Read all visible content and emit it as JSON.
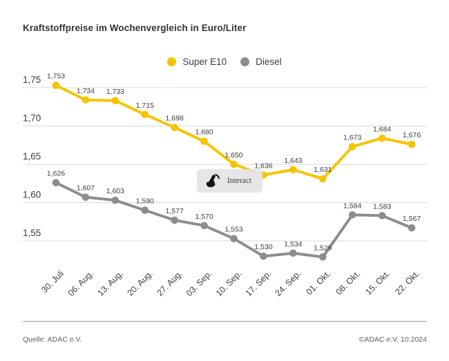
{
  "page": {
    "title": "Kraftstoffpreise im Wochenvergleich in Euro/Liter",
    "source_left": "Quelle: ADAC e.V.",
    "source_right": "©ADAC e.V. 10.2024"
  },
  "legend": {
    "items": [
      {
        "label": "Super E10",
        "color": "#F5C400"
      },
      {
        "label": "Diesel",
        "color": "#8D8D8D"
      }
    ]
  },
  "interact_overlay": {
    "label": "Interact",
    "icon": "tap-hand-icon"
  },
  "chart_data": {
    "type": "line",
    "title": "Kraftstoffpreise im Wochenvergleich in Euro/Liter",
    "ylabel": "Euro/Liter",
    "xlabel": "",
    "categories": [
      "30. Juli",
      "06. Aug.",
      "13. Aug.",
      "20. Aug.",
      "27. Aug.",
      "03. Sep.",
      "10. Sep.",
      "17. Sep.",
      "24. Sep.",
      "01. Okt.",
      "08. Okt.",
      "15. Okt.",
      "22. Okt."
    ],
    "series": [
      {
        "name": "Super E10",
        "color": "#F5C400",
        "values": [
          1.753,
          1.734,
          1.733,
          1.715,
          1.698,
          1.68,
          1.65,
          1.636,
          1.643,
          1.631,
          1.673,
          1.684,
          1.676
        ]
      },
      {
        "name": "Diesel",
        "color": "#8D8D8D",
        "values": [
          1.626,
          1.607,
          1.603,
          1.59,
          1.577,
          1.57,
          1.553,
          1.53,
          1.534,
          1.529,
          1.584,
          1.583,
          1.567
        ]
      }
    ],
    "yticks": [
      1.75,
      1.7,
      1.65,
      1.6,
      1.55
    ],
    "ylim": [
      1.52,
      1.77
    ],
    "grid": true,
    "legend_position": "top-center",
    "point_labels": true,
    "number_format": "german-comma",
    "grid_color": "#d9d9d9",
    "label_color": "#3d3d3d"
  }
}
